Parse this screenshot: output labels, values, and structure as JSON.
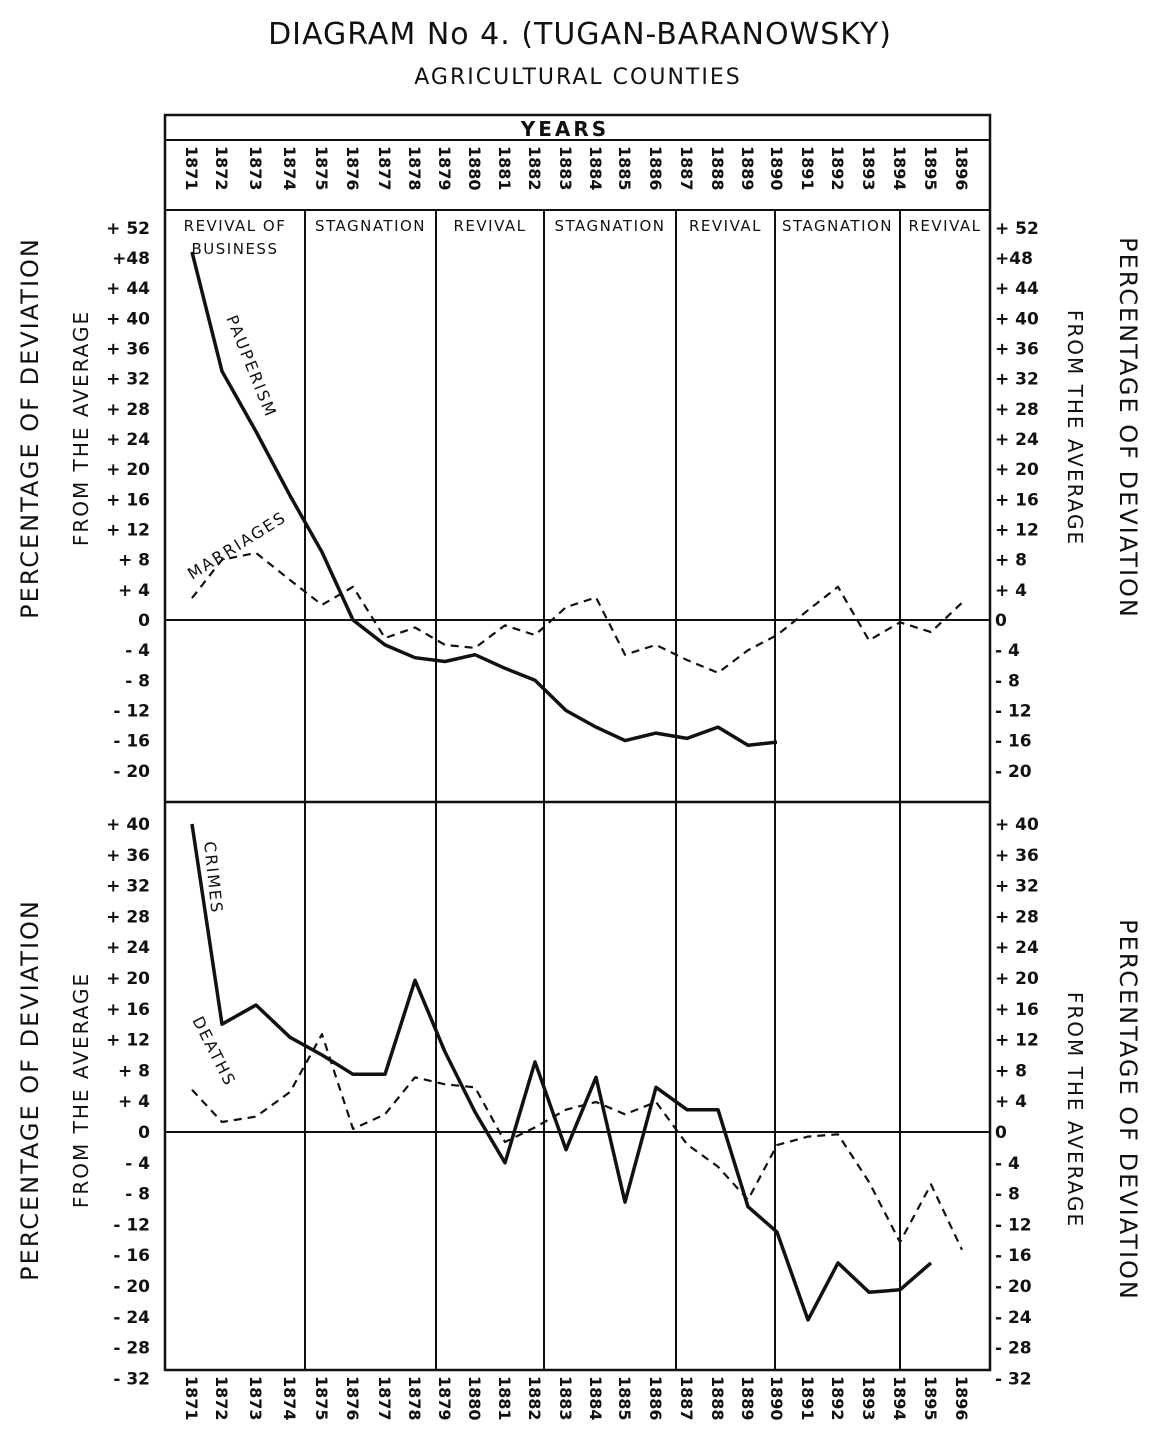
{
  "title": "DIAGRAM No 4. (TUGAN-BARANOWSKY)",
  "subtitle": "AGRICULTURAL COUNTIES",
  "years_header": "YEARS",
  "axis_label_line1": "PERCENTAGE OF DEVIATION",
  "axis_label_line2": "FROM THE AVERAGE",
  "colors": {
    "ink": "#111111",
    "background": "#ffffff"
  },
  "chart_data": [
    {
      "type": "line",
      "panel": "top",
      "xlabel": "YEARS",
      "ylabel": "PERCENTAGE OF DEVIATION FROM THE AVERAGE",
      "x": [
        1871,
        1872,
        1873,
        1874,
        1875,
        1876,
        1877,
        1878,
        1879,
        1880,
        1881,
        1882,
        1883,
        1884,
        1885,
        1886,
        1887,
        1888,
        1889,
        1890,
        1891,
        1892,
        1893,
        1894,
        1895,
        1896
      ],
      "ylim": [
        -20,
        52
      ],
      "yticks": [
        "+ 52",
        "+48",
        "+ 44",
        "+ 40",
        "+ 36",
        "+ 32",
        "+ 28",
        "+ 24",
        "+ 20",
        "+ 16",
        "+ 12",
        "+ 8",
        "+ 4",
        "0",
        "- 4",
        "- 8",
        "- 12",
        "- 16",
        "- 20"
      ],
      "ytick_values": [
        52,
        48,
        44,
        40,
        36,
        32,
        28,
        24,
        20,
        16,
        12,
        8,
        4,
        0,
        -4,
        -8,
        -12,
        -16,
        -20
      ],
      "periods": [
        {
          "label": "REVIVAL OF",
          "label2": "BUSINESS",
          "start": 1871,
          "end": 1874
        },
        {
          "label": "STAGNATION",
          "start": 1875,
          "end": 1878
        },
        {
          "label": "REVIVAL",
          "start": 1879,
          "end": 1882
        },
        {
          "label": "STAGNATION",
          "start": 1883,
          "end": 1886
        },
        {
          "label": "REVIVAL",
          "start": 1887,
          "end": 1889
        },
        {
          "label": "STAGNATION",
          "start": 1890,
          "end": 1893
        },
        {
          "label": "REVIVAL",
          "start": 1894,
          "end": 1896
        }
      ],
      "series": [
        {
          "name": "PAUPERISM",
          "style": "solid",
          "values": [
            48.8,
            33,
            25,
            16.5,
            9,
            0,
            -3.3,
            -5,
            -5.5,
            -4.6,
            -6.4,
            -8,
            -12,
            -14.2,
            -16,
            -15,
            -15.7,
            -14.2,
            -16.6,
            -16.2,
            null,
            null,
            null,
            null,
            null,
            null
          ]
        },
        {
          "name": "MARRIAGES",
          "style": "dashed",
          "values": [
            2.9,
            8,
            8.9,
            5.3,
            2,
            4.4,
            -2.4,
            -1,
            -3.3,
            -3.7,
            -0.7,
            -2,
            1.7,
            3,
            -4.6,
            -3.3,
            -5.3,
            -7,
            -4,
            -2,
            1.3,
            4.4,
            -2.7,
            -0.3,
            -1.6,
            2.3
          ]
        }
      ]
    },
    {
      "type": "line",
      "panel": "bottom",
      "xlabel": "",
      "ylabel": "PERCENTAGE OF DEVIATION FROM THE AVERAGE",
      "x": [
        1871,
        1872,
        1873,
        1874,
        1875,
        1876,
        1877,
        1878,
        1879,
        1880,
        1881,
        1882,
        1883,
        1884,
        1885,
        1886,
        1887,
        1888,
        1889,
        1890,
        1891,
        1892,
        1893,
        1894,
        1895,
        1896
      ],
      "ylim": [
        -32,
        40
      ],
      "yticks": [
        "+ 40",
        "+ 36",
        "+ 32",
        "+ 28",
        "+ 24",
        "+ 20",
        "+ 16",
        "+ 12",
        "+ 8",
        "+ 4",
        "0",
        "- 4",
        "- 8",
        "- 12",
        "- 16",
        "- 20",
        "- 24",
        "- 28",
        "- 32"
      ],
      "ytick_values": [
        40,
        36,
        32,
        28,
        24,
        20,
        16,
        12,
        8,
        4,
        0,
        -4,
        -8,
        -12,
        -16,
        -20,
        -24,
        -28,
        -32
      ],
      "series": [
        {
          "name": "CRIMES",
          "style": "solid",
          "values": [
            40,
            14,
            16.5,
            12.3,
            10,
            7.5,
            7.5,
            19.7,
            10.4,
            2.6,
            -4,
            9.1,
            -2.3,
            7.1,
            -9.1,
            5.8,
            2.9,
            2.9,
            -9.7,
            -13,
            -24.4,
            -17,
            -20.8,
            -20.5,
            -17,
            null
          ]
        },
        {
          "name": "DEATHS",
          "style": "dashed",
          "values": [
            5.5,
            1.3,
            2,
            5.2,
            12.7,
            0.4,
            2.3,
            7.1,
            6.2,
            5.8,
            -1.3,
            0.6,
            2.9,
            3.9,
            2.3,
            3.9,
            -1.6,
            -4.5,
            -8.8,
            -1.7,
            -0.6,
            -0.3,
            -6.5,
            -14.3,
            -6.8,
            -15.3
          ]
        }
      ]
    }
  ]
}
